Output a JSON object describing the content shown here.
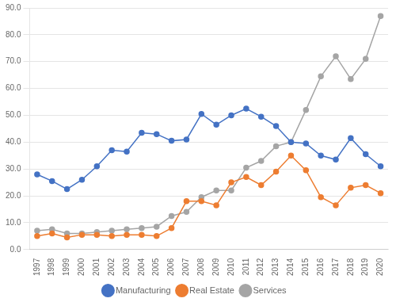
{
  "chart_data": {
    "type": "line",
    "categories": [
      "1997",
      "1998",
      "1999",
      "2000",
      "2001",
      "2002",
      "2003",
      "2004",
      "2005",
      "2006",
      "2007",
      "2008",
      "2009",
      "2010",
      "2011",
      "2012",
      "2013",
      "2014",
      "2015",
      "2016",
      "2017",
      "2018",
      "2019",
      "2020"
    ],
    "series": [
      {
        "name": "Manufacturing",
        "color": "#4472C4",
        "values": [
          28.0,
          25.5,
          22.5,
          26.0,
          31.0,
          37.0,
          36.5,
          43.5,
          43.0,
          40.5,
          41.0,
          50.5,
          46.5,
          50.0,
          52.5,
          49.5,
          46.0,
          40.0,
          39.5,
          35.0,
          33.5,
          41.5,
          35.5,
          31.0
        ]
      },
      {
        "name": "Real Estate",
        "color": "#ED7D31",
        "values": [
          5.0,
          6.0,
          4.5,
          5.5,
          5.5,
          5.0,
          5.5,
          5.5,
          5.0,
          8.0,
          18.0,
          18.0,
          16.5,
          25.0,
          27.0,
          24.0,
          29.0,
          35.0,
          29.5,
          19.5,
          16.5,
          23.0,
          24.0,
          21.0
        ]
      },
      {
        "name": "Services",
        "color": "#A5A5A5",
        "values": [
          7.0,
          7.5,
          6.0,
          6.0,
          6.5,
          7.0,
          7.5,
          8.0,
          8.5,
          12.5,
          14.0,
          19.5,
          22.0,
          22.0,
          30.5,
          33.0,
          38.5,
          40.0,
          52.0,
          64.5,
          72.0,
          63.5,
          71.0,
          87.0
        ]
      }
    ],
    "marker": "circle",
    "ylim": [
      0,
      90
    ],
    "yticks": [
      {
        "value": 0,
        "label": "0.0"
      },
      {
        "value": 10,
        "label": "10.0"
      },
      {
        "value": 20,
        "label": "20.0"
      },
      {
        "value": 30,
        "label": "30.0"
      },
      {
        "value": 40,
        "label": "40.0"
      },
      {
        "value": 50,
        "label": "50.0"
      },
      {
        "value": 60,
        "label": "60.0"
      },
      {
        "value": 70,
        "label": "70.0"
      },
      {
        "value": 80,
        "label": "80.0"
      },
      {
        "value": 90,
        "label": "90.0"
      }
    ],
    "grid": true,
    "legend": "bottom"
  }
}
